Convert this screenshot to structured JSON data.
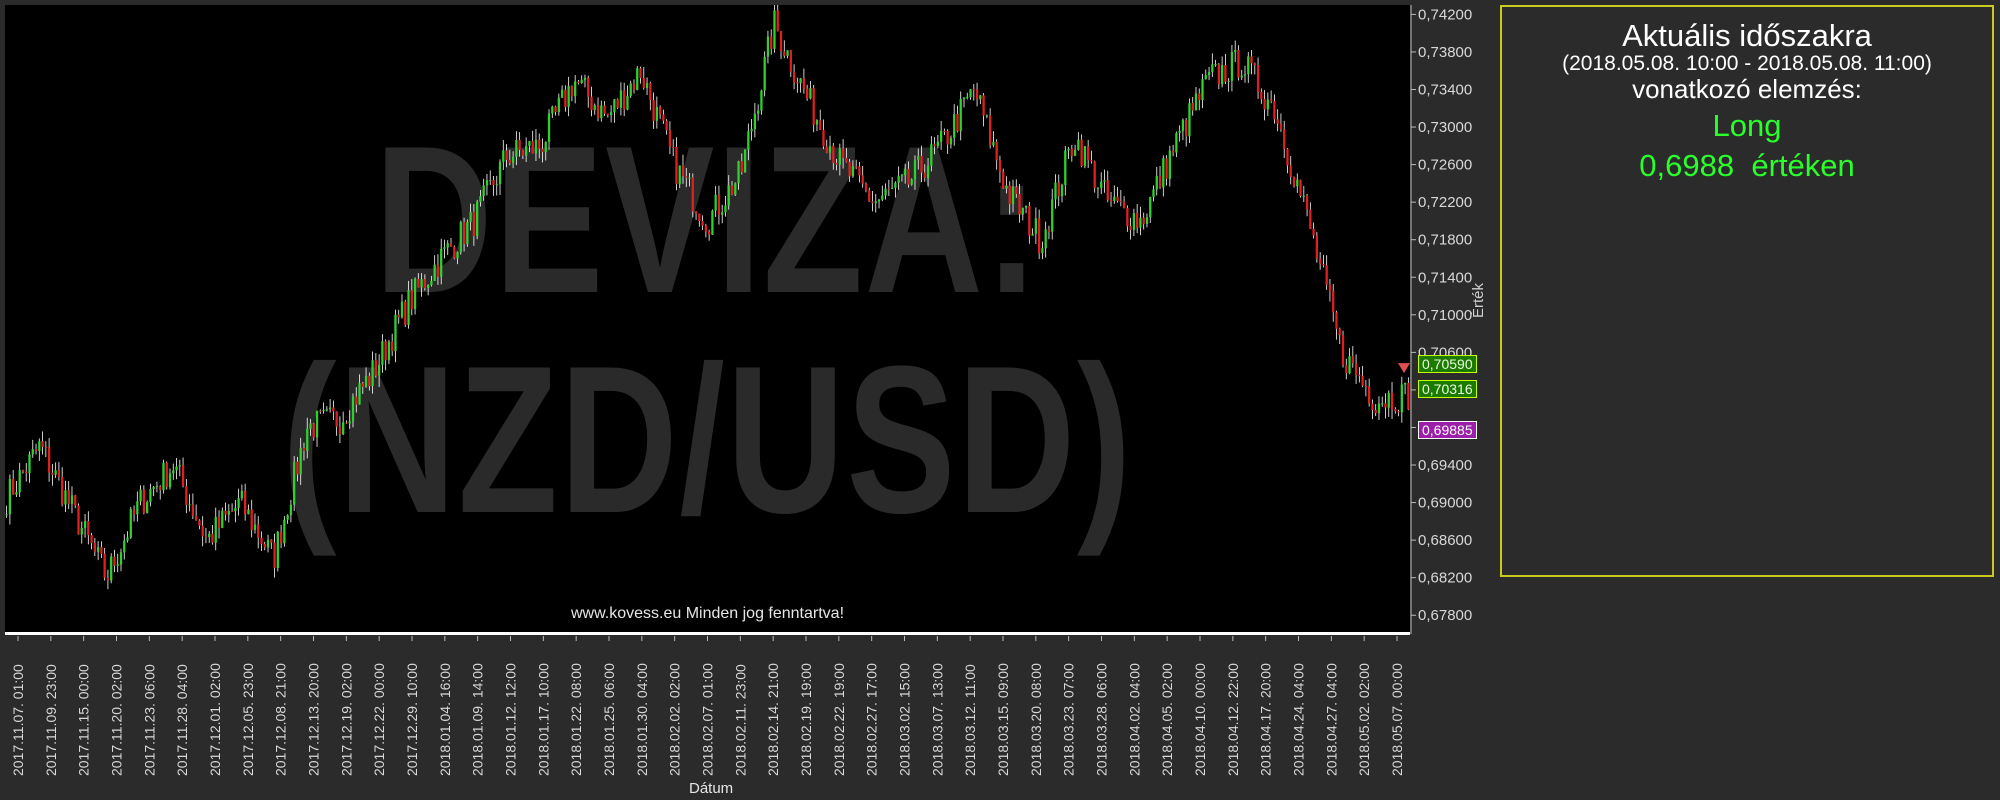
{
  "watermark": {
    "line1": "DEVIZA:",
    "line2": "(NZD/USD)"
  },
  "footer_note": "www.kovess.eu Minden jog fenntartva!",
  "axis": {
    "ylabel": "Érték",
    "xlabel": "Dátum"
  },
  "badges": {
    "b1": "0,70590",
    "b2": "0,70316",
    "b3": "0,69885"
  },
  "panel": {
    "title": "Aktuális időszakra",
    "period": "(2018.05.08. 10:00 - 2018.05.08. 11:00)",
    "subtitle": "vonatkozó elemzés:",
    "direction": "Long",
    "value": "0,6988",
    "value_suffix": "értéken"
  },
  "colors": {
    "up": "#2fd12f",
    "down": "#e02020",
    "wick": "#ffffff",
    "accent_green": "#2bff2b",
    "panel_border": "#c9c91e"
  },
  "chart_data": {
    "type": "candlestick",
    "title": "",
    "xlabel": "Dátum",
    "ylabel": "Érték",
    "ylim": [
      0.676,
      0.743
    ],
    "y_ticks": [
      "0,74200",
      "0,73800",
      "0,73400",
      "0,73000",
      "0,72600",
      "0,72200",
      "0,71800",
      "0,71400",
      "0,71000",
      "0,70600",
      "0,70200",
      "0,69800",
      "0,69400",
      "0,69000",
      "0,68600",
      "0,68200",
      "0,67800"
    ],
    "y_tick_values": [
      0.742,
      0.738,
      0.734,
      0.73,
      0.726,
      0.722,
      0.718,
      0.714,
      0.71,
      0.706,
      0.702,
      0.698,
      0.694,
      0.69,
      0.686,
      0.682,
      0.678
    ],
    "x_ticks": [
      "2017.11.07. 01:00",
      "2017.11.09. 23:00",
      "2017.11.15. 00:00",
      "2017.11.20. 02:00",
      "2017.11.23. 06:00",
      "2017.11.28. 04:00",
      "2017.12.01. 02:00",
      "2017.12.05. 23:00",
      "2017.12.08. 21:00",
      "2017.12.13. 20:00",
      "2017.12.19. 02:00",
      "2017.12.22. 00:00",
      "2017.12.29. 10:00",
      "2018.01.04. 16:00",
      "2018.01.09. 14:00",
      "2018.01.12. 12:00",
      "2018.01.17. 10:00",
      "2018.01.22. 08:00",
      "2018.01.25. 06:00",
      "2018.01.30. 04:00",
      "2018.02.02. 02:00",
      "2018.02.07. 01:00",
      "2018.02.11. 23:00",
      "2018.02.14. 21:00",
      "2018.02.19. 19:00",
      "2018.02.22. 19:00",
      "2018.02.27. 17:00",
      "2018.03.02. 15:00",
      "2018.03.07. 13:00",
      "2018.03.12. 11:00",
      "2018.03.15. 09:00",
      "2018.03.20. 08:00",
      "2018.03.23. 07:00",
      "2018.03.28. 06:00",
      "2018.04.02. 04:00",
      "2018.04.05. 02:00",
      "2018.04.10. 00:00",
      "2018.04.12. 22:00",
      "2018.04.17. 20:00",
      "2018.04.24. 04:00",
      "2018.04.27. 04:00",
      "2018.05.02. 02:00",
      "2018.05.07. 00:00"
    ],
    "trend_close": [
      0.6905,
      0.696,
      0.689,
      0.682,
      0.69,
      0.694,
      0.686,
      0.69,
      0.684,
      0.698,
      0.699,
      0.704,
      0.711,
      0.716,
      0.72,
      0.727,
      0.728,
      0.735,
      0.731,
      0.736,
      0.726,
      0.72,
      0.725,
      0.741,
      0.733,
      0.726,
      0.722,
      0.724,
      0.728,
      0.734,
      0.723,
      0.718,
      0.729,
      0.722,
      0.72,
      0.728,
      0.735,
      0.737,
      0.732,
      0.72,
      0.706,
      0.701,
      0.7015
    ],
    "legend": "none",
    "grid": false
  }
}
